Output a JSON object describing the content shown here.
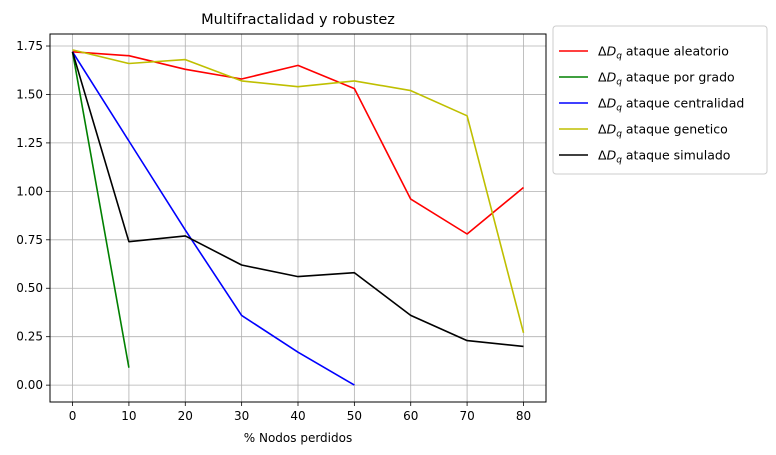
{
  "chart_data": {
    "type": "line",
    "title": "Multifractalidad y robustez",
    "xlabel": "% Nodos perdidos",
    "ylabel": "",
    "xlim": [
      -4,
      84
    ],
    "ylim": [
      -0.087,
      1.812
    ],
    "xticks": [
      0,
      10,
      20,
      30,
      40,
      50,
      60,
      70,
      80
    ],
    "yticks": [
      0.0,
      0.25,
      0.5,
      0.75,
      1.0,
      1.25,
      1.5,
      1.75
    ],
    "xtick_labels": [
      "0",
      "10",
      "20",
      "30",
      "40",
      "50",
      "60",
      "70",
      "80"
    ],
    "ytick_labels": [
      "0.00",
      "0.25",
      "0.50",
      "0.75",
      "1.00",
      "1.25",
      "1.50",
      "1.75"
    ],
    "grid": true,
    "legend_position": "outside-upper-right",
    "series": [
      {
        "name": "ataque aleatorio",
        "color": "#ff0000",
        "x": [
          0,
          10,
          20,
          30,
          40,
          50,
          60,
          70,
          80
        ],
        "y": [
          1.72,
          1.7,
          1.63,
          1.58,
          1.65,
          1.53,
          0.96,
          0.78,
          1.02
        ]
      },
      {
        "name": "ataque por grado",
        "color": "#008000",
        "x": [
          0,
          10
        ],
        "y": [
          1.72,
          0.09
        ]
      },
      {
        "name": "ataque centralidad",
        "color": "#0000ff",
        "x": [
          0,
          10,
          20,
          30,
          40,
          50
        ],
        "y": [
          1.72,
          1.26,
          0.8,
          0.36,
          0.17,
          0.0
        ]
      },
      {
        "name": "ataque genetico",
        "color": "#bfbf00",
        "x": [
          0,
          10,
          20,
          30,
          40,
          50,
          60,
          70,
          80
        ],
        "y": [
          1.73,
          1.66,
          1.68,
          1.57,
          1.54,
          1.57,
          1.52,
          1.39,
          0.27
        ]
      },
      {
        "name": "ataque simulado",
        "color": "#000000",
        "x": [
          0,
          10,
          20,
          30,
          40,
          50,
          60,
          70,
          80
        ],
        "y": [
          1.72,
          0.74,
          0.77,
          0.62,
          0.56,
          0.58,
          0.36,
          0.23,
          0.2
        ]
      }
    ]
  }
}
